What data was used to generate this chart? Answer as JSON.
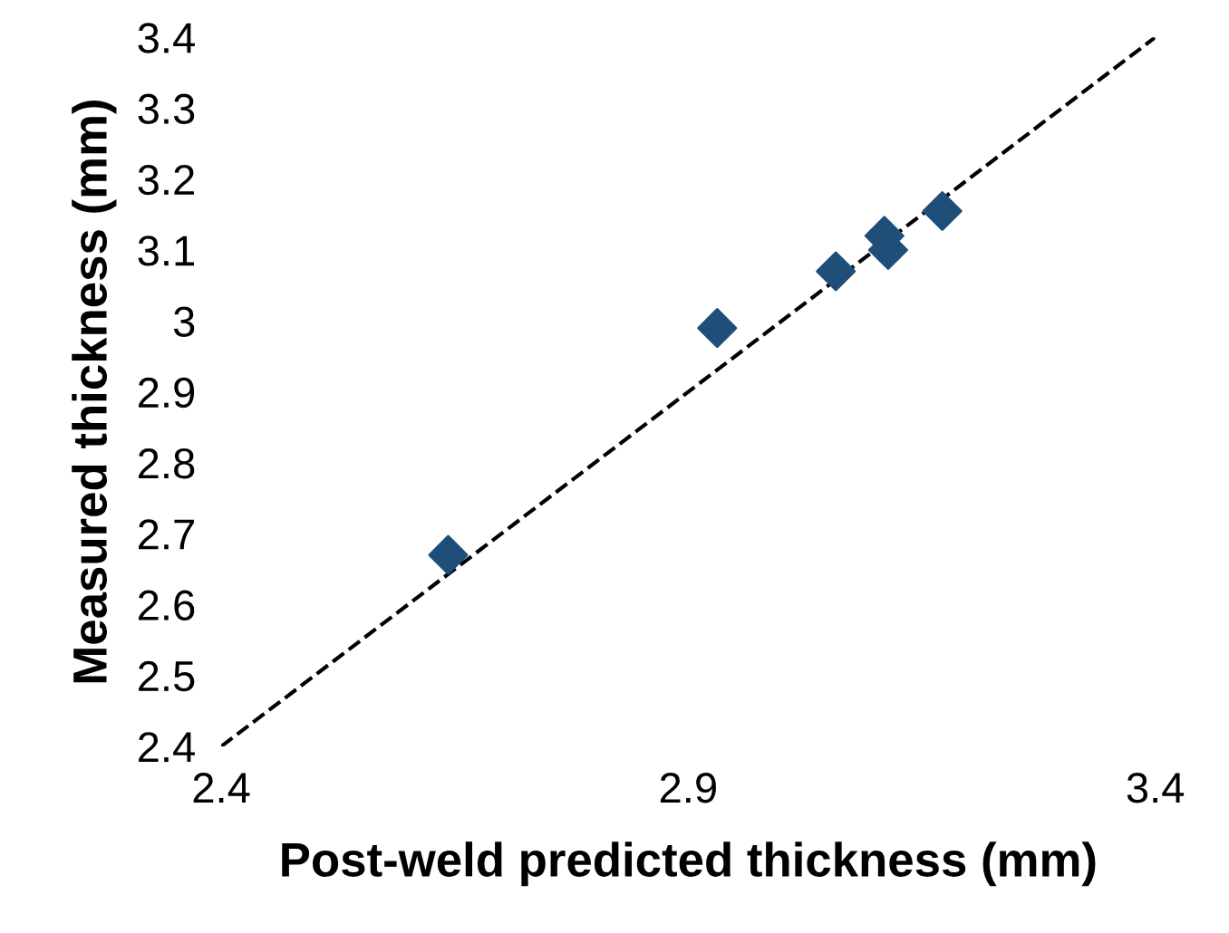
{
  "chart_data": {
    "type": "scatter",
    "xlabel": "Post-weld predicted thickness (mm)",
    "ylabel": "Measured thickness (mm)",
    "xlim": [
      2.4,
      3.4
    ],
    "xticks": [
      2.4,
      2.9,
      3.4
    ],
    "ylim": [
      2.4,
      3.4
    ],
    "yticks": [
      2.4,
      2.5,
      2.6,
      2.7,
      2.8,
      2.9,
      3,
      3.1,
      3.2,
      3.3,
      3.4
    ],
    "grid": false,
    "legend": false,
    "series": [
      {
        "color": "#1f4e79",
        "marker": "diamond",
        "x": [
          2.643,
          2.931,
          3.058,
          3.11,
          3.114,
          3.172
        ],
        "values": [
          2.67,
          2.99,
          3.07,
          3.12,
          3.1,
          3.155
        ]
      },
      {
        "type": "line",
        "color": "#000000",
        "marker": "none",
        "line_style": "dashed",
        "x": [
          2.4,
          3.4
        ],
        "values": [
          2.4,
          3.4
        ]
      }
    ]
  }
}
